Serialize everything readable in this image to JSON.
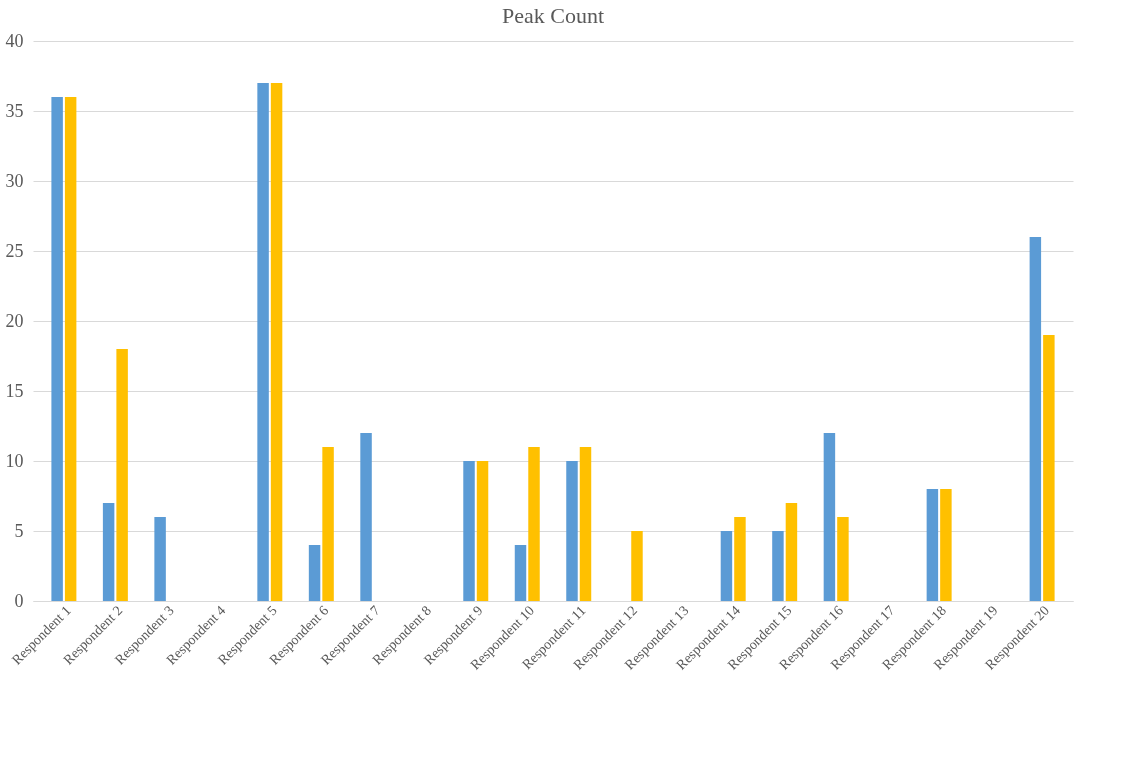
{
  "chart_data": {
    "type": "bar",
    "title": "Peak Count",
    "categories": [
      "Respondent 1",
      "Respondent 2",
      "Respondent 3",
      "Respondent 4",
      "Respondent 5",
      "Respondent 6",
      "Respondent 7",
      "Respondent 8",
      "Respondent 9",
      "Respondent 10",
      "Respondent 11",
      "Respondent 12",
      "Respondent 13",
      "Respondent 14",
      "Respondent 15",
      "Respondent 16",
      "Respondent 17",
      "Respondent 18",
      "Respondent 19",
      "Respondent 20"
    ],
    "series": [
      {
        "color": "#5b9bd5",
        "values": [
          36,
          7,
          6,
          0,
          37,
          4,
          12,
          0,
          10,
          4,
          10,
          0,
          0,
          5,
          5,
          12,
          0,
          8,
          0,
          26
        ]
      },
      {
        "color": "#ffc000",
        "values": [
          36,
          18,
          0,
          0,
          37,
          11,
          0,
          0,
          10,
          11,
          11,
          5,
          0,
          6,
          7,
          6,
          0,
          8,
          0,
          19
        ]
      }
    ],
    "ylim": [
      0,
      40
    ],
    "yticks": [
      0,
      5,
      10,
      15,
      20,
      25,
      30,
      35,
      40
    ],
    "grid": "y",
    "legend": false
  }
}
